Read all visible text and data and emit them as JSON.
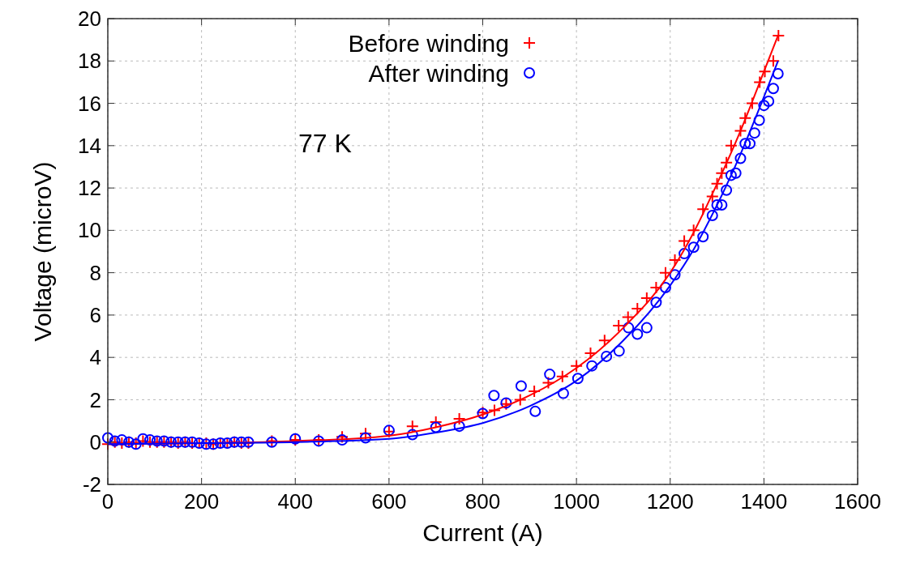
{
  "chart_data": {
    "type": "scatter",
    "xlabel": "Current (A)",
    "ylabel": "Voltage (microV)",
    "annotations": [
      "77 K"
    ],
    "xlim": [
      0,
      1600
    ],
    "xticks": [
      0,
      200,
      400,
      600,
      800,
      1000,
      1200,
      1400,
      1600
    ],
    "ylim": [
      -2,
      20
    ],
    "yticks": [
      -2,
      0,
      2,
      4,
      6,
      8,
      10,
      12,
      14,
      16,
      18,
      20
    ],
    "grid": true,
    "legend": "top",
    "series": [
      {
        "name": "Before winding",
        "marker": "cross",
        "color": "#ff0000",
        "x": [
          0,
          15,
          30,
          45,
          60,
          75,
          90,
          105,
          120,
          135,
          150,
          165,
          180,
          195,
          210,
          225,
          240,
          255,
          270,
          285,
          300,
          350,
          400,
          450,
          500,
          550,
          600,
          650,
          700,
          750,
          800,
          825,
          850,
          880,
          910,
          940,
          970,
          1000,
          1030,
          1060,
          1090,
          1110,
          1130,
          1150,
          1170,
          1190,
          1210,
          1230,
          1250,
          1270,
          1290,
          1300,
          1310,
          1320,
          1330,
          1350,
          1360,
          1375,
          1391,
          1402,
          1420,
          1431
        ],
        "values": [
          -0.1,
          0,
          -0.05,
          0,
          -0.05,
          0.05,
          0,
          0,
          0,
          0,
          -0.05,
          0,
          -0.05,
          -0.05,
          -0.05,
          -0.1,
          -0.05,
          -0.05,
          0,
          -0.05,
          -0.05,
          0.05,
          0.1,
          0.1,
          0.25,
          0.4,
          0.5,
          0.75,
          0.95,
          1.1,
          1.4,
          1.5,
          1.8,
          2.0,
          2.4,
          2.8,
          3.1,
          3.6,
          4.2,
          4.8,
          5.5,
          5.9,
          6.3,
          6.8,
          7.3,
          8.0,
          8.6,
          9.5,
          10.0,
          11.0,
          11.6,
          12.2,
          12.7,
          13.2,
          14.0,
          14.7,
          15.3,
          16.0,
          17.0,
          17.5,
          18.0,
          19.2
        ]
      },
      {
        "name": "After winding",
        "marker": "circle",
        "color": "#0000ff",
        "x": [
          0,
          15,
          30,
          45,
          60,
          75,
          90,
          105,
          120,
          135,
          150,
          165,
          180,
          195,
          210,
          225,
          240,
          255,
          270,
          285,
          300,
          350,
          400,
          450,
          500,
          550,
          600,
          650,
          700,
          750,
          800,
          824,
          850,
          882,
          912,
          943,
          972,
          1003,
          1033,
          1064,
          1091,
          1111,
          1130,
          1150,
          1170,
          1190,
          1210,
          1230,
          1250,
          1270,
          1290,
          1300,
          1310,
          1320,
          1330,
          1340,
          1350,
          1360,
          1370,
          1380,
          1390,
          1400,
          1410,
          1420,
          1430
        ],
        "values": [
          0.2,
          0.05,
          0.1,
          0,
          -0.1,
          0.15,
          0.1,
          0.05,
          0.05,
          0,
          0,
          0,
          0,
          -0.05,
          -0.1,
          -0.1,
          -0.05,
          -0.05,
          0,
          0,
          0,
          0,
          0.15,
          0.05,
          0.1,
          0.2,
          0.55,
          0.35,
          0.7,
          0.75,
          1.35,
          2.2,
          1.85,
          2.65,
          1.45,
          3.2,
          2.3,
          3.0,
          3.6,
          4.05,
          4.3,
          5.4,
          5.1,
          5.4,
          6.6,
          7.3,
          7.9,
          8.9,
          9.2,
          9.7,
          10.7,
          11.2,
          11.2,
          11.9,
          12.6,
          12.7,
          13.4,
          14.1,
          14.1,
          14.6,
          15.2,
          15.9,
          16.1,
          16.7,
          17.4
        ]
      },
      {
        "type": "line",
        "marker": "none",
        "color": "#ff0000",
        "x": [
          0,
          200,
          400,
          600,
          700,
          800,
          900,
          1000,
          1100,
          1200,
          1250,
          1300,
          1350,
          1400,
          1430
        ],
        "values": [
          -0.1,
          -0.05,
          0.05,
          0.3,
          0.7,
          1.3,
          2.2,
          3.5,
          5.4,
          8.0,
          9.9,
          12.2,
          14.7,
          17.5,
          19.2
        ]
      },
      {
        "type": "line",
        "marker": "none",
        "color": "#0000ff",
        "x": [
          0,
          200,
          400,
          600,
          700,
          800,
          900,
          1000,
          1100,
          1200,
          1250,
          1300,
          1350,
          1400,
          1430
        ],
        "values": [
          -0.1,
          -0.05,
          0.0,
          0.15,
          0.45,
          0.9,
          1.7,
          2.9,
          4.8,
          7.4,
          9.1,
          11.2,
          13.6,
          16.3,
          18.0
        ]
      }
    ]
  }
}
